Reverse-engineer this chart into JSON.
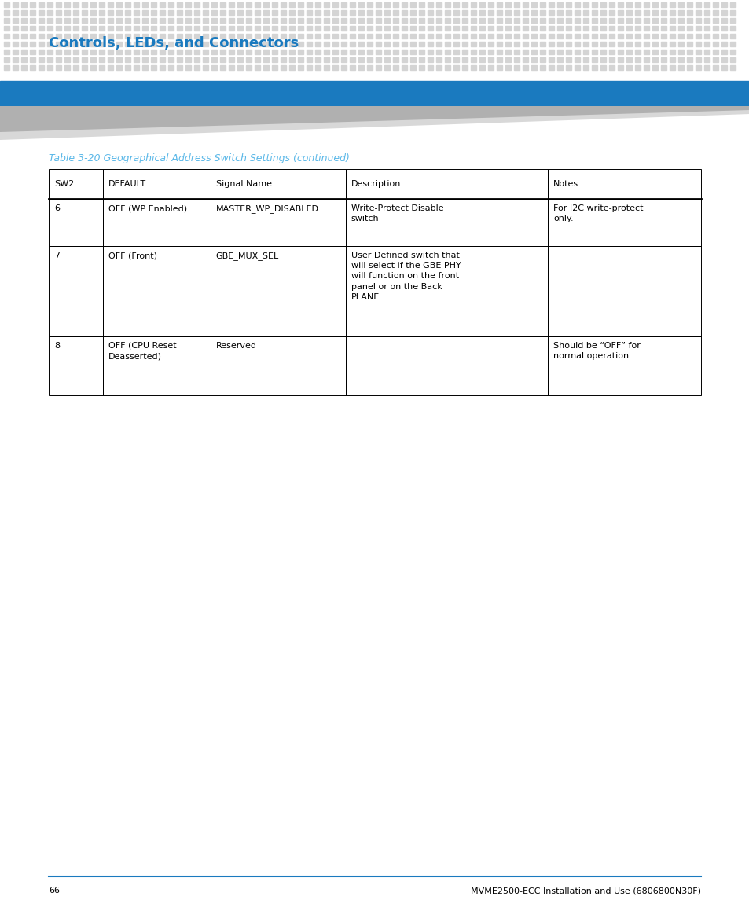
{
  "page_title": "Controls, LEDs, and Connectors",
  "page_title_color": "#1a7abf",
  "header_bar_color": "#1a7abf",
  "table_caption": "Table 3-20 Geographical Address Switch Settings (continued)",
  "table_caption_color": "#5bb8e8",
  "col_headers": [
    "SW2",
    "DEFAULT",
    "Signal Name",
    "Description",
    "Notes"
  ],
  "rows": [
    [
      "6",
      "OFF (WP Enabled)",
      "MASTER_WP_DISABLED",
      "Write-Protect Disable\nswitch",
      "For I2C write-protect\nonly."
    ],
    [
      "7",
      "OFF (Front)",
      "GBE_MUX_SEL",
      "User Defined switch that\nwill select if the GBE PHY\nwill function on the front\npanel or on the Back\nPLANE",
      ""
    ],
    [
      "8",
      "OFF (CPU Reset\nDeasserted)",
      "Reserved",
      "",
      "Should be “OFF” for\nnormal operation."
    ]
  ],
  "footer_line_color": "#1a7abf",
  "footer_page": "66",
  "footer_text": "MVME2500-ECC Installation and Use (6806800N30F)",
  "bg_color": "#ffffff",
  "dot_color": "#d4d4d4",
  "font_size_title": 13,
  "font_size_caption": 9,
  "font_size_table": 8,
  "font_size_footer": 8
}
